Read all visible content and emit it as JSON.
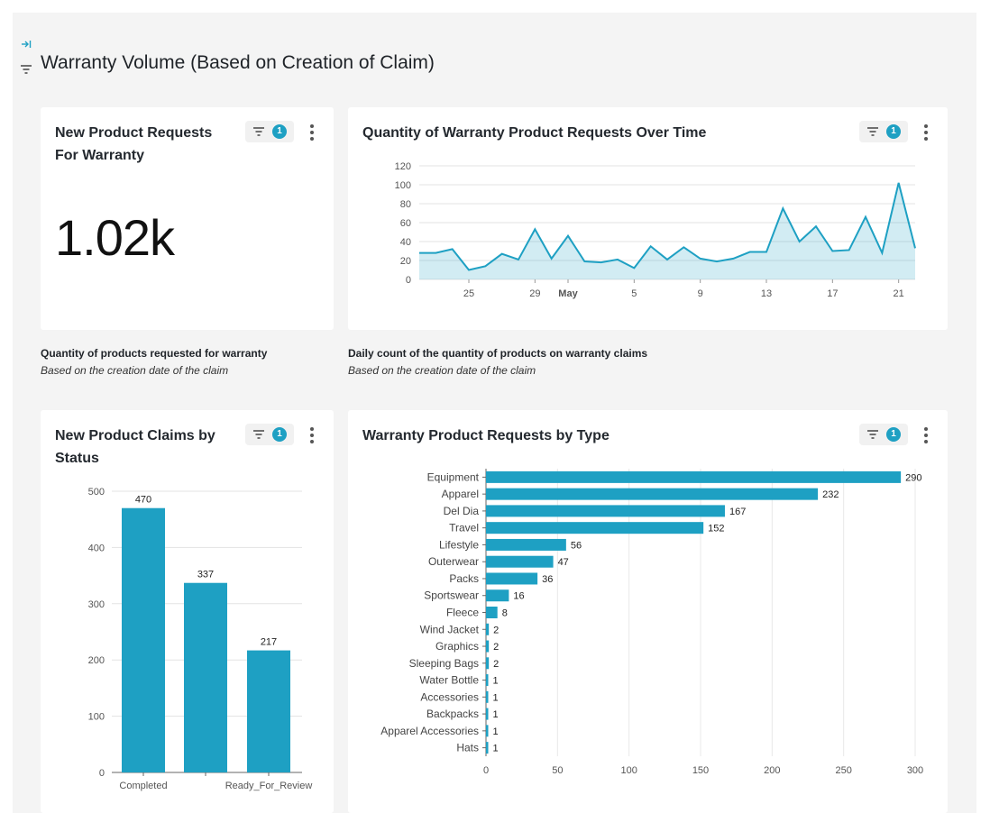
{
  "page": {
    "title": "Warranty Volume (Based on Creation of Claim)",
    "accent": "#1ea0c3"
  },
  "cards": {
    "kpi": {
      "title_line1": "New Product Requests",
      "title_line2": "For Warranty",
      "value": "1.02k",
      "filter_count": "1",
      "caption_title": "Quantity of products requested for warranty",
      "caption_sub": "Based on the creation date of the claim"
    },
    "timeseries": {
      "title": "Quantity of Warranty Product Requests Over Time",
      "filter_count": "1",
      "caption_title": "Daily count of the quantity of products on warranty claims",
      "caption_sub": "Based on the creation date of the claim"
    },
    "status": {
      "title_line1": "New Product Claims by",
      "title_line2": "Status",
      "filter_count": "1"
    },
    "type": {
      "title": "Warranty Product Requests by Type",
      "filter_count": "1"
    }
  },
  "chart_data": [
    {
      "type": "area",
      "x": [
        "Apr 22",
        "Apr 23",
        "Apr 24",
        "Apr 25",
        "Apr 26",
        "Apr 27",
        "Apr 28",
        "Apr 29",
        "Apr 30",
        "May 1",
        "May 2",
        "May 3",
        "May 4",
        "May 5",
        "May 6",
        "May 7",
        "May 8",
        "May 9",
        "May 10",
        "May 11",
        "May 12",
        "May 13",
        "May 14",
        "May 15",
        "May 16",
        "May 17",
        "May 18",
        "May 19",
        "May 20",
        "May 21",
        "May 22"
      ],
      "tick_labels": [
        "25",
        "29",
        "May",
        "5",
        "9",
        "13",
        "17",
        "21"
      ],
      "tick_index": [
        3,
        7,
        9,
        13,
        17,
        21,
        25,
        29
      ],
      "values": [
        28,
        28,
        32,
        10,
        14,
        27,
        21,
        53,
        22,
        46,
        19,
        18,
        21,
        12,
        35,
        21,
        34,
        22,
        19,
        22,
        29,
        29,
        75,
        40,
        56,
        30,
        31,
        66,
        28,
        102,
        33
      ],
      "ylim": [
        0,
        120
      ],
      "yticks": [
        0,
        20,
        40,
        60,
        80,
        100,
        120
      ],
      "grid": true
    },
    {
      "type": "bar",
      "categories": [
        "Completed",
        "",
        "Ready_For_Review"
      ],
      "values": [
        470,
        337,
        217
      ],
      "ylim": [
        0,
        500
      ],
      "yticks": [
        0,
        100,
        200,
        300,
        400,
        500
      ],
      "grid": true
    },
    {
      "type": "bar",
      "orientation": "horizontal",
      "categories": [
        "Equipment",
        "Apparel",
        "Del Dia",
        "Travel",
        "Lifestyle",
        "Outerwear",
        "Packs",
        "Sportswear",
        "Fleece",
        "Wind Jacket",
        "Graphics",
        "Sleeping Bags",
        "Water Bottle",
        "Accessories",
        "Backpacks",
        "Apparel Accessories",
        "Hats"
      ],
      "values": [
        290,
        232,
        167,
        152,
        56,
        47,
        36,
        16,
        8,
        2,
        2,
        2,
        1,
        1,
        1,
        1,
        1
      ],
      "xlim": [
        0,
        300
      ],
      "xticks": [
        0,
        50,
        100,
        150,
        200,
        250,
        300
      ],
      "grid": true
    }
  ]
}
